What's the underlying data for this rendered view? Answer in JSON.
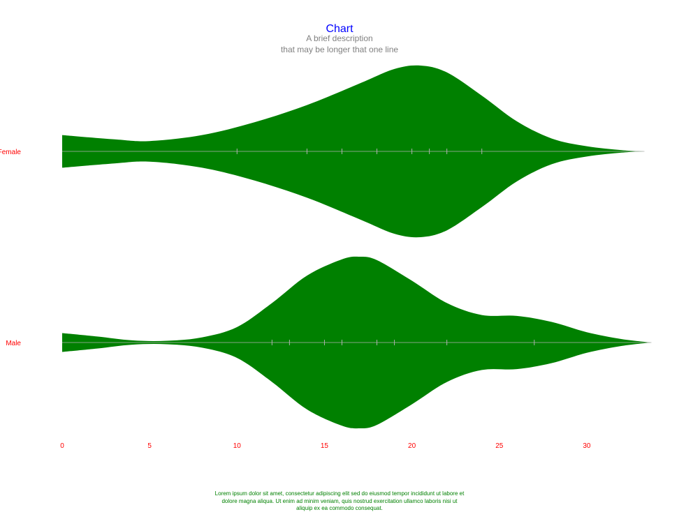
{
  "chart_data": {
    "type": "violin",
    "title": "Chart",
    "subtitle_lines": [
      "A brief description",
      "that may be longer that one line"
    ],
    "caption": "Lorem ipsum dolor sit amet, consectetur adipiscing elit sed do eiusmod tempor incididunt ut labore et dolore magna aliqua. Ut enim ad minim veniam, quis nostrud exercitation ullamco laboris nisi ut aliquip ex ea commodo consequat.",
    "xlim": [
      0,
      33.7
    ],
    "xticks": [
      0,
      5,
      10,
      15,
      20,
      25,
      30
    ],
    "grid": false,
    "colors": {
      "fill": "#008000",
      "title": "#0000ff",
      "subtitle": "#808080",
      "labels": "#ff0000",
      "caption": "#008000",
      "axis_line": "#b0b0b0"
    },
    "series": [
      {
        "name": "Female",
        "points": [
          10,
          14,
          16,
          18,
          20,
          21,
          22,
          24
        ],
        "density": [
          [
            0,
            0.19
          ],
          [
            3,
            0.14
          ],
          [
            5,
            0.12
          ],
          [
            8,
            0.19
          ],
          [
            11,
            0.34
          ],
          [
            14,
            0.54
          ],
          [
            17,
            0.79
          ],
          [
            19,
            0.96
          ],
          [
            20.5,
            1.0
          ],
          [
            22,
            0.92
          ],
          [
            24,
            0.65
          ],
          [
            26,
            0.35
          ],
          [
            28,
            0.15
          ],
          [
            30,
            0.06
          ],
          [
            32,
            0.015
          ],
          [
            33.3,
            0
          ]
        ]
      },
      {
        "name": "Male",
        "points": [
          12,
          13,
          15,
          16,
          18,
          19,
          22,
          27
        ],
        "density": [
          [
            0,
            0.11
          ],
          [
            2,
            0.07
          ],
          [
            4,
            0.025
          ],
          [
            6,
            0.02
          ],
          [
            8,
            0.06
          ],
          [
            10,
            0.18
          ],
          [
            12,
            0.46
          ],
          [
            14,
            0.78
          ],
          [
            16,
            0.97
          ],
          [
            17,
            1.0
          ],
          [
            18,
            0.96
          ],
          [
            20,
            0.72
          ],
          [
            22,
            0.46
          ],
          [
            24,
            0.32
          ],
          [
            26,
            0.31
          ],
          [
            28,
            0.24
          ],
          [
            30,
            0.12
          ],
          [
            32,
            0.04
          ],
          [
            33.7,
            0
          ]
        ]
      }
    ]
  }
}
